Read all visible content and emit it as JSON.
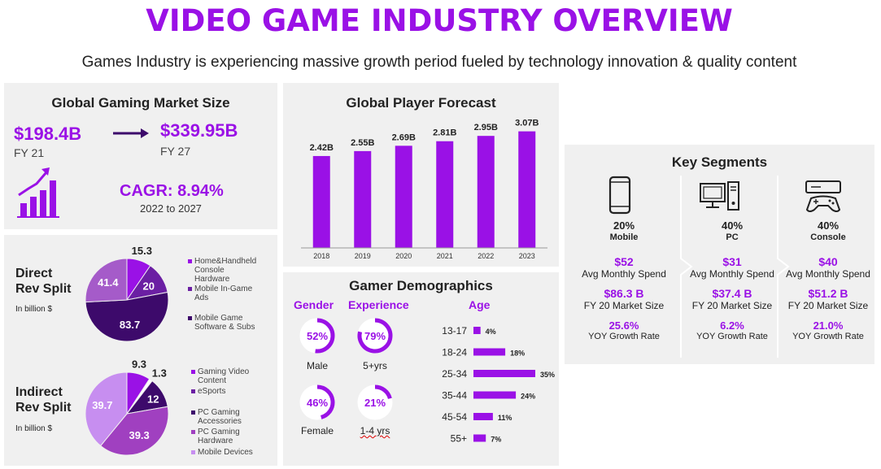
{
  "header": {
    "title": "VIDEO GAME INDUSTRY OVERVIEW",
    "subtitle": "Games Industry is experiencing massive growth period fueled by technology innovation & quality content"
  },
  "colors": {
    "accent": "#9a11e6",
    "dark_purple": "#3d0a6b",
    "mid_purple": "#6b1fa3",
    "light_purple": "#b77ee0",
    "panel_bg": "#f0f0f0"
  },
  "market": {
    "title": "Global Gaming Market Size",
    "from_value": "$198.4B",
    "from_label": "FY 21",
    "to_value": "$339.95B",
    "to_label": "FY 27",
    "cagr_label": "CAGR:",
    "cagr_value": "8.94%",
    "cagr_period": "2022 to 2027",
    "icon": "growth-chart-icon"
  },
  "player_forecast": {
    "title": "Global Player Forecast"
  },
  "rev_split": {
    "direct_title_1": "Direct",
    "direct_title_2": "Rev Split",
    "direct_unit": "In billion $",
    "indirect_title_1": "Indirect",
    "indirect_title_2": "Rev Split",
    "indirect_unit": "In billion $"
  },
  "demographics": {
    "title": "Gamer Demographics",
    "gender_header": "Gender",
    "experience_header": "Experience",
    "age_header": "Age",
    "gender": [
      {
        "pct": "52%",
        "value": 52,
        "label": "Male"
      },
      {
        "pct": "46%",
        "value": 46,
        "label": "Female"
      }
    ],
    "experience": [
      {
        "pct": "79%",
        "value": 79,
        "label": "5+yrs"
      },
      {
        "pct": "21%",
        "value": 21,
        "label": "1-4 yrs"
      }
    ]
  },
  "segments": {
    "title": "Key Segments",
    "items": [
      {
        "icon": "mobile-phone-icon",
        "pct": "20%",
        "name": "Mobile",
        "spend": "$52",
        "spend_label": "Avg Monthly Spend",
        "market": "$86.3 B",
        "market_label": "FY 20 Market Size",
        "growth": "25.6%",
        "growth_label": "YOY Growth Rate"
      },
      {
        "icon": "desktop-pc-icon",
        "pct": "40%",
        "name": "PC",
        "spend": "$31",
        "spend_label": "Avg Monthly Spend",
        "market": "$37.4 B",
        "market_label": "FY 20 Market Size",
        "growth": "6.2%",
        "growth_label": "YOY Growth Rate"
      },
      {
        "icon": "console-icon",
        "pct": "40%",
        "name": "Console",
        "spend": "$40",
        "spend_label": "Avg Monthly Spend",
        "market": "$51.2 B",
        "market_label": "FY 20 Market Size",
        "growth": "21.0%",
        "growth_label": "YOY Growth Rate"
      }
    ]
  },
  "chart_data": [
    {
      "type": "bar",
      "title": "Global Player Forecast",
      "categories": [
        "2018",
        "2019",
        "2020",
        "2021",
        "2022",
        "2023"
      ],
      "values": [
        2.42,
        2.55,
        2.69,
        2.81,
        2.95,
        3.07
      ],
      "value_labels": [
        "2.42B",
        "2.55B",
        "2.69B",
        "2.81B",
        "2.95B",
        "3.07B"
      ],
      "ylim": [
        0,
        3.2
      ],
      "color": "#9a11e6"
    },
    {
      "type": "pie",
      "title": "Direct Rev Split",
      "unit": "In billion $",
      "slices": [
        {
          "label": "Home&Handheld Console Hardware",
          "value": 15.3,
          "text": "15.3",
          "color": "#9a11e6"
        },
        {
          "label": "Mobile In-Game Ads",
          "value": 20,
          "text": "20",
          "color": "#6b1fa3"
        },
        {
          "label": "Mobile Game Software & Subs",
          "value": 83.7,
          "text": "83.7",
          "color": "#3d0a6b"
        },
        {
          "label": "",
          "value": 41.4,
          "text": "41.4",
          "color": "#a55bc9"
        }
      ],
      "legend": [
        "Home&Handheld Console Hardware",
        "Mobile In-Game Ads",
        "Mobile Game Software & Subs"
      ]
    },
    {
      "type": "pie",
      "title": "Indirect Rev Split",
      "unit": "In billion $",
      "slices": [
        {
          "label": "Gaming Video Content",
          "value": 9.3,
          "text": "9.3",
          "color": "#9a11e6"
        },
        {
          "label": "eSports",
          "value": 1.3,
          "text": "1.3",
          "color": "#ffffff"
        },
        {
          "label": "PC Gaming Accessories",
          "value": 12,
          "text": "12",
          "color": "#3d0a6b"
        },
        {
          "label": "PC Gaming Hardware",
          "value": 39.3,
          "text": "39.3",
          "color": "#a040c0"
        },
        {
          "label": "Mobile Devices",
          "value": 39.7,
          "text": "39.7",
          "color": "#c78ef0"
        }
      ],
      "legend": [
        "Gaming Video Content",
        "eSports",
        "PC Gaming Accessories",
        "PC Gaming Hardware",
        "Mobile Devices"
      ]
    },
    {
      "type": "bar",
      "orientation": "horizontal",
      "title": "Age",
      "categories": [
        "13-17",
        "18-24",
        "25-34",
        "35-44",
        "45-54",
        "55+"
      ],
      "values": [
        4,
        18,
        35,
        24,
        11,
        7
      ],
      "value_labels": [
        "4%",
        "18%",
        "35%",
        "24%",
        "11%",
        "7%"
      ],
      "xlim": [
        0,
        35
      ],
      "color": "#9a11e6"
    }
  ]
}
